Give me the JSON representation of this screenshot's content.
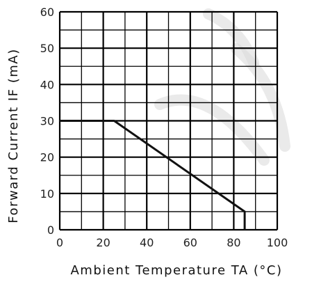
{
  "chart_data": {
    "type": "line",
    "title": "",
    "xlabel": "Ambient Temperature TA (°C)",
    "ylabel": "Forward Current IF (mA)",
    "xlim": [
      0,
      100
    ],
    "ylim": [
      0,
      60
    ],
    "xticks": [
      0,
      20,
      40,
      60,
      80,
      100
    ],
    "yticks": [
      0,
      10,
      20,
      30,
      40,
      50,
      60
    ],
    "grid": true,
    "series": [
      {
        "x": [
          0,
          25,
          85,
          85
        ],
        "y": [
          30,
          30,
          5,
          0
        ]
      }
    ]
  }
}
